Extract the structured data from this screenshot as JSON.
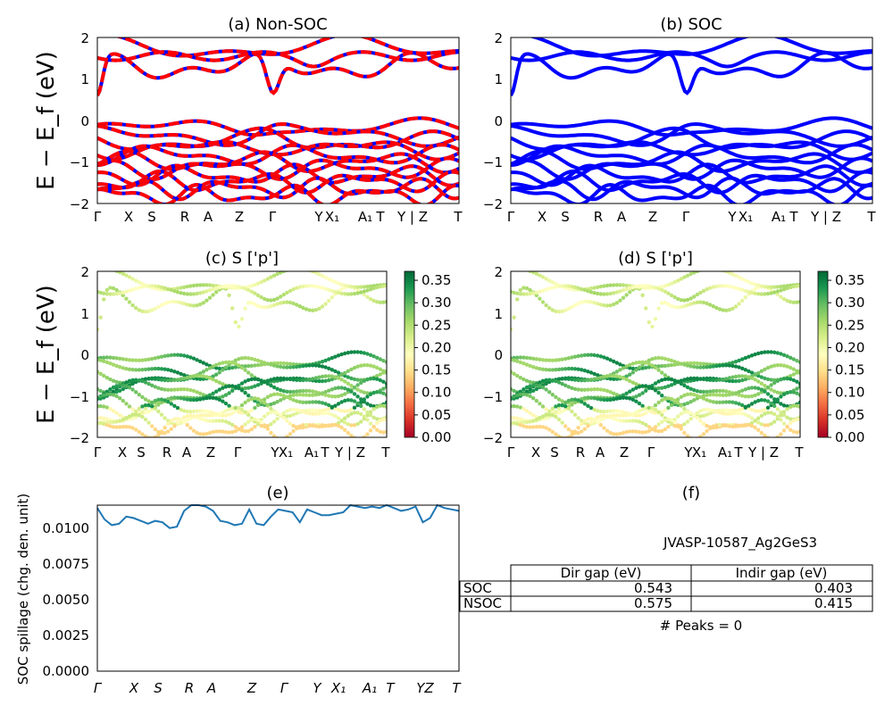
{
  "figure": {
    "ylabel_band": "E − E_f (eV)",
    "kpath_labels": [
      "Γ",
      "X",
      "S",
      "R",
      "A",
      "Z",
      "Γ",
      "Y",
      "X₁",
      "A₁",
      "T",
      "Y | Z",
      "T"
    ],
    "kpath_labels_e": [
      "Γ",
      "X",
      "S",
      "R",
      "A",
      "Z",
      "Γ",
      "Y",
      "X₁",
      "A₁",
      "T",
      "YZ",
      "T"
    ]
  },
  "colors": {
    "soc_band": "#0000ff",
    "nsoc_band": "#ff0000",
    "spillage_line": "#1f77b4",
    "cmap": [
      "#a50026",
      "#d73027",
      "#f46d43",
      "#fdae61",
      "#fee08b",
      "#ffffbf",
      "#d9ef8b",
      "#a6d96a",
      "#66bd63",
      "#1a9850",
      "#006837"
    ]
  },
  "chart_data": [
    {
      "id": "a",
      "type": "line",
      "title": "(a) Non-SOC",
      "ylabel": "E − E_f (eV)",
      "ylim": [
        -2,
        2
      ],
      "yticks": [
        "2",
        "1",
        "0",
        "−1",
        "−2"
      ],
      "series": [
        {
          "name": "SOC",
          "color": "#0000ff"
        },
        {
          "name": "Non-SOC",
          "color": "#ff0000",
          "dashed": true
        }
      ]
    },
    {
      "id": "b",
      "type": "line",
      "title": "(b) SOC",
      "ylim": [
        -2,
        2
      ],
      "yticks": [
        "2",
        "1",
        "0",
        "−1",
        "−2"
      ],
      "series": [
        {
          "name": "SOC",
          "color": "#0000ff"
        }
      ]
    },
    {
      "id": "c",
      "type": "scatter",
      "title": "(c)  S ['p']",
      "ylabel": "E − E_f (eV)",
      "ylim": [
        -2,
        2
      ],
      "yticks": [
        "2",
        "1",
        "0",
        "−1",
        "−2"
      ],
      "colorbar": {
        "min": 0.0,
        "max": 0.37,
        "ticks": [
          "0.35",
          "0.30",
          "0.25",
          "0.20",
          "0.15",
          "0.10",
          "0.05",
          "0.00"
        ]
      }
    },
    {
      "id": "d",
      "type": "scatter",
      "title": "(d) S ['p']",
      "ylim": [
        -2,
        2
      ],
      "yticks": [
        "2",
        "1",
        "0",
        "−1",
        "−2"
      ],
      "colorbar": {
        "min": 0.0,
        "max": 0.37,
        "ticks": [
          "0.35",
          "0.30",
          "0.25",
          "0.20",
          "0.15",
          "0.10",
          "0.05",
          "0.00"
        ]
      }
    },
    {
      "id": "e",
      "type": "line",
      "title": "(e)",
      "ylabel": "SOC spillage (chg. den. unit)",
      "ylim": [
        0,
        0.0116
      ],
      "yticks": [
        "0.0000",
        "0.0025",
        "0.0050",
        "0.0075",
        "0.0100"
      ],
      "x": [
        0,
        0.02,
        0.04,
        0.06,
        0.08,
        0.1,
        0.12,
        0.14,
        0.16,
        0.18,
        0.2,
        0.22,
        0.24,
        0.26,
        0.28,
        0.3,
        0.32,
        0.34,
        0.36,
        0.38,
        0.4,
        0.42,
        0.44,
        0.46,
        0.48,
        0.5,
        0.52,
        0.54,
        0.56,
        0.58,
        0.6,
        0.62,
        0.64,
        0.66,
        0.68,
        0.7,
        0.72,
        0.74,
        0.76,
        0.78,
        0.8,
        0.82,
        0.84,
        0.86,
        0.88,
        0.9,
        0.92,
        0.94,
        0.96,
        0.98,
        1.0
      ],
      "values": [
        0.0114,
        0.0106,
        0.0102,
        0.0103,
        0.0108,
        0.0107,
        0.0105,
        0.0103,
        0.0105,
        0.0104,
        0.01,
        0.0101,
        0.0112,
        0.0116,
        0.0116,
        0.0115,
        0.0112,
        0.0105,
        0.0104,
        0.0102,
        0.0103,
        0.0113,
        0.0103,
        0.0102,
        0.0108,
        0.0113,
        0.0112,
        0.0111,
        0.0104,
        0.0113,
        0.0111,
        0.0109,
        0.0109,
        0.011,
        0.0111,
        0.0116,
        0.0115,
        0.0114,
        0.0115,
        0.0114,
        0.0116,
        0.0114,
        0.0112,
        0.0113,
        0.0115,
        0.0104,
        0.0107,
        0.0116,
        0.0114,
        0.0113,
        0.0112
      ]
    }
  ],
  "panel_f": {
    "title": "(f)",
    "material_id": "JVASP-10587_Ag2GeS3",
    "table": {
      "headers": [
        "Dir gap (eV)",
        "Indir gap (eV)"
      ],
      "rows": [
        {
          "label": "SOC",
          "dir": "0.543",
          "indir": "0.403"
        },
        {
          "label": "NSOC",
          "dir": "0.575",
          "indir": "0.415"
        }
      ]
    },
    "peaks_text": "# Peaks = 0"
  }
}
